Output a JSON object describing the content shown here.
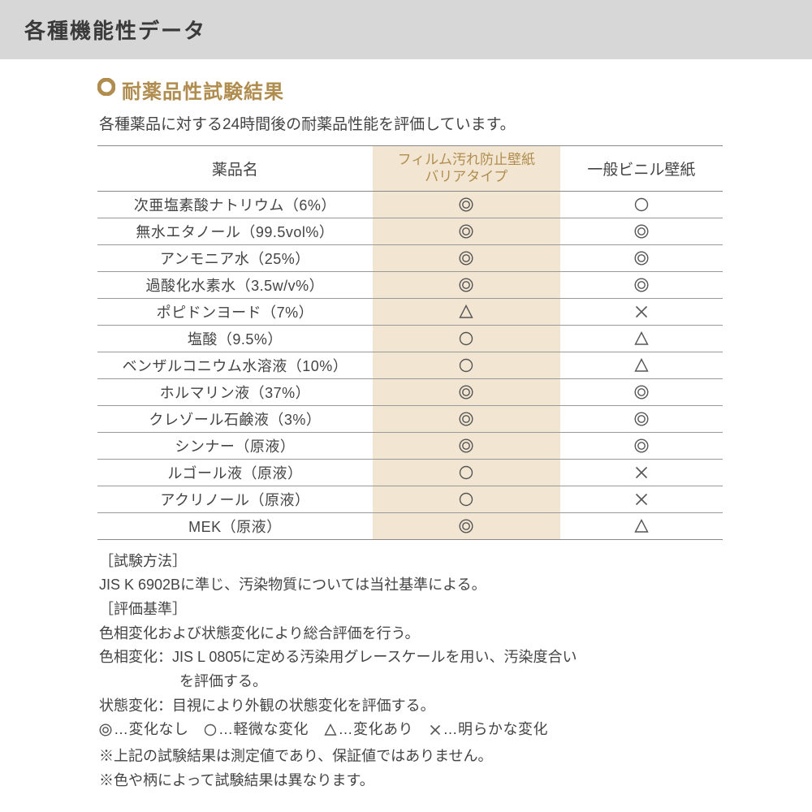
{
  "colors": {
    "header_bg": "#d7d7d7",
    "header_text": "#3a3a3a",
    "accent": "#b08d4f",
    "highlight_bg": "#f2e6d3",
    "text": "#444444",
    "border": "#888888",
    "row_border": "#999999",
    "symbol_stroke": "#555555"
  },
  "header": {
    "title": "各種機能性データ"
  },
  "section": {
    "title": "耐薬品性試験結果",
    "subtitle": "各種薬品に対する24時間後の耐薬品性能を評価しています。"
  },
  "table": {
    "columns": {
      "name": "薬品名",
      "col_a_line1": "フィルム汚れ防止壁紙",
      "col_a_line2": "バリアタイプ",
      "col_b": "一般ビニル壁紙"
    },
    "rows": [
      {
        "name": "次亜塩素酸ナトリウム（6%）",
        "a": "double",
        "b": "single"
      },
      {
        "name": "無水エタノール（99.5vol%）",
        "a": "double",
        "b": "double"
      },
      {
        "name": "アンモニア水（25%）",
        "a": "double",
        "b": "double"
      },
      {
        "name": "過酸化水素水（3.5w/v%）",
        "a": "double",
        "b": "double"
      },
      {
        "name": "ポピドンヨード（7%）",
        "a": "triangle",
        "b": "cross"
      },
      {
        "name": "塩酸（9.5%）",
        "a": "single",
        "b": "triangle"
      },
      {
        "name": "ベンザルコニウム水溶液（10%）",
        "a": "single",
        "b": "triangle"
      },
      {
        "name": "ホルマリン液（37%）",
        "a": "double",
        "b": "double"
      },
      {
        "name": "クレゾール石鹸液（3%）",
        "a": "double",
        "b": "double"
      },
      {
        "name": "シンナー（原液）",
        "a": "double",
        "b": "double"
      },
      {
        "name": "ルゴール液（原液）",
        "a": "single",
        "b": "cross"
      },
      {
        "name": "アクリノール（原液）",
        "a": "single",
        "b": "cross"
      },
      {
        "name": "MEK（原液）",
        "a": "double",
        "b": "triangle"
      }
    ]
  },
  "notes": {
    "method_label": "［試験方法］",
    "method_text": "JIS K 6902Bに準じ、汚染物質については当社基準による。",
    "criteria_label": "［評価基準］",
    "criteria_text1": "色相変化および状態変化により総合評価を行う。",
    "criteria_text2a": "色相変化：JIS L 0805に定める汚染用グレースケールを用い、汚染度合い",
    "criteria_text2b": "を評価する。",
    "criteria_text3": "状態変化：目視により外観の状態変化を評価する。",
    "legend": {
      "double": "…変化なし",
      "single": "…軽微な変化",
      "triangle": "…変化あり",
      "cross": "…明らかな変化"
    },
    "disclaimer1": "※上記の試験結果は測定値であり、保証値ではありません。",
    "disclaimer2": "※色や柄によって試験結果は異なります。"
  }
}
